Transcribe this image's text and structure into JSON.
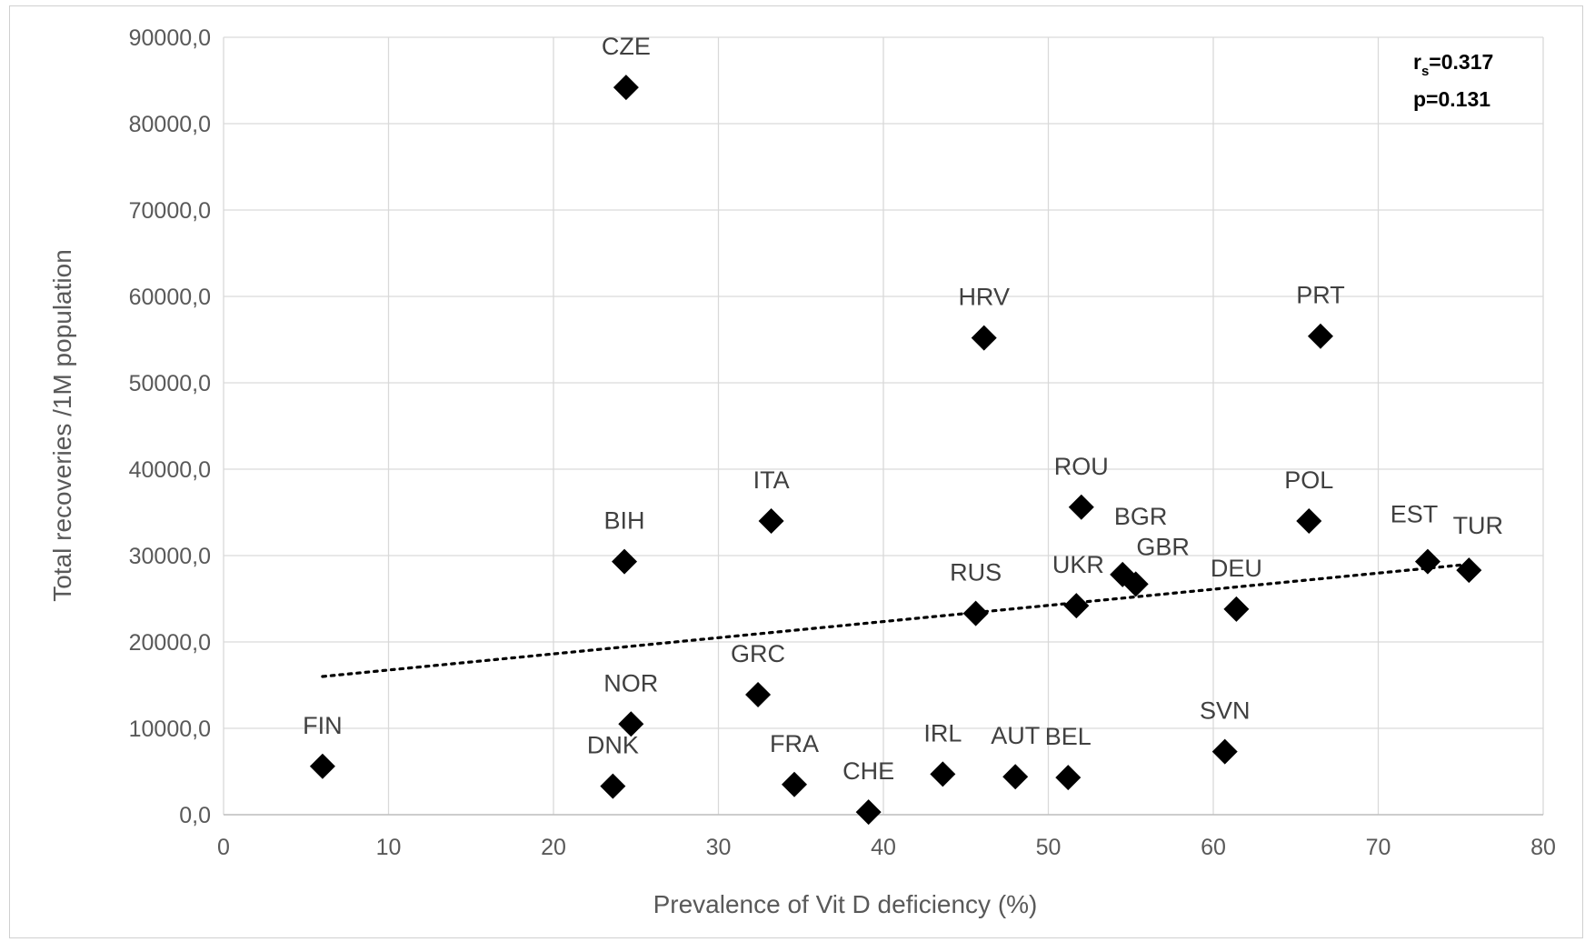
{
  "chart_data": {
    "type": "scatter",
    "title": "",
    "xlabel": "Prevalence of Vit D deficiency (%)",
    "ylabel": "Total recoveries /1M population",
    "xlim": [
      0,
      80
    ],
    "ylim": [
      0,
      90000
    ],
    "x_ticks": [
      "0",
      "10",
      "20",
      "30",
      "40",
      "50",
      "60",
      "70",
      "80"
    ],
    "y_ticks": [
      "0,0",
      "10000,0",
      "20000,0",
      "30000,0",
      "40000,0",
      "50000,0",
      "60000,0",
      "70000,0",
      "80000,0",
      "90000,0"
    ],
    "grid": true,
    "marker": "diamond",
    "marker_color": "#000000",
    "trendline": {
      "type": "linear",
      "style": "dotted",
      "x_range": [
        6,
        75.5
      ],
      "y_start": 16000,
      "y_end": 29000
    },
    "stat_annotation": {
      "r_symbol": "r",
      "r_subscript": "s",
      "r_value": "=0.317",
      "p_text": "p=0.131"
    },
    "points": [
      {
        "label": "CZE",
        "x": 24.4,
        "y": 84200
      },
      {
        "label": "HRV",
        "x": 46.1,
        "y": 55200
      },
      {
        "label": "PRT",
        "x": 66.5,
        "y": 55400
      },
      {
        "label": "ITA",
        "x": 33.2,
        "y": 34000
      },
      {
        "label": "BIH",
        "x": 24.3,
        "y": 29300
      },
      {
        "label": "ROU",
        "x": 52.0,
        "y": 35600
      },
      {
        "label": "POL",
        "x": 65.8,
        "y": 34000
      },
      {
        "label": "EST",
        "x": 73.0,
        "y": 29300
      },
      {
        "label": "TUR",
        "x": 75.5,
        "y": 28300
      },
      {
        "label": "BGR",
        "x": 54.5,
        "y": 27800
      },
      {
        "label": "GBR",
        "x": 55.3,
        "y": 26700
      },
      {
        "label": "UKR",
        "x": 51.7,
        "y": 24200
      },
      {
        "label": "RUS",
        "x": 45.6,
        "y": 23300
      },
      {
        "label": "DEU",
        "x": 61.4,
        "y": 23800
      },
      {
        "label": "GRC",
        "x": 32.4,
        "y": 13900
      },
      {
        "label": "NOR",
        "x": 24.7,
        "y": 10500
      },
      {
        "label": "FIN",
        "x": 6.0,
        "y": 5600
      },
      {
        "label": "DNK",
        "x": 23.6,
        "y": 3300
      },
      {
        "label": "FRA",
        "x": 34.6,
        "y": 3500
      },
      {
        "label": "CHE",
        "x": 39.1,
        "y": 300
      },
      {
        "label": "IRL",
        "x": 43.6,
        "y": 4700
      },
      {
        "label": "AUT",
        "x": 48.0,
        "y": 4400
      },
      {
        "label": "BEL",
        "x": 51.2,
        "y": 4300
      },
      {
        "label": "SVN",
        "x": 60.7,
        "y": 7300
      }
    ]
  }
}
